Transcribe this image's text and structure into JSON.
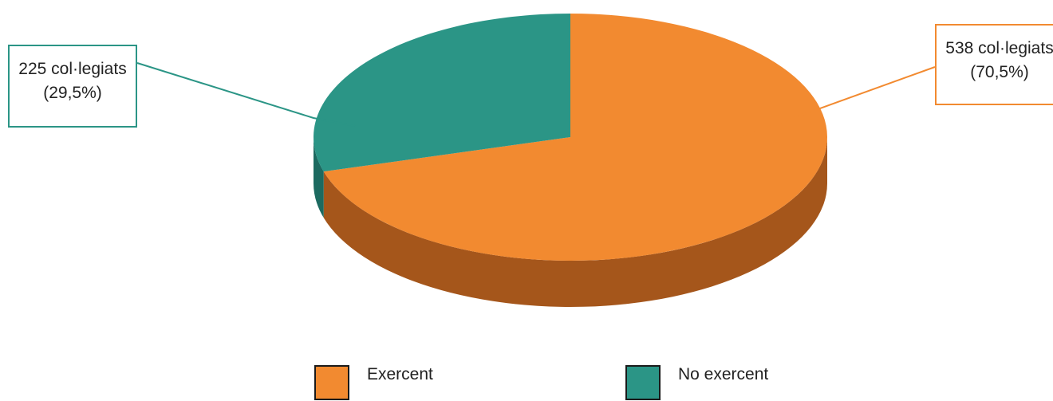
{
  "chart_data": {
    "type": "pie",
    "title": "",
    "series": [
      {
        "name": "Exercent",
        "value": 538,
        "percent": 70.5,
        "label_line1": "538 col·legiats",
        "label_line2": "(70,5%)",
        "color": "#f28a30",
        "side_color": "#a5561b"
      },
      {
        "name": "No exercent",
        "value": 225,
        "percent": 29.5,
        "label_line1": "225 col·legiats",
        "label_line2": "(29,5%)",
        "color": "#2b9586",
        "side_color": "#1c6a60"
      }
    ],
    "legend": {
      "placement": "bottom"
    },
    "three_d": true
  }
}
